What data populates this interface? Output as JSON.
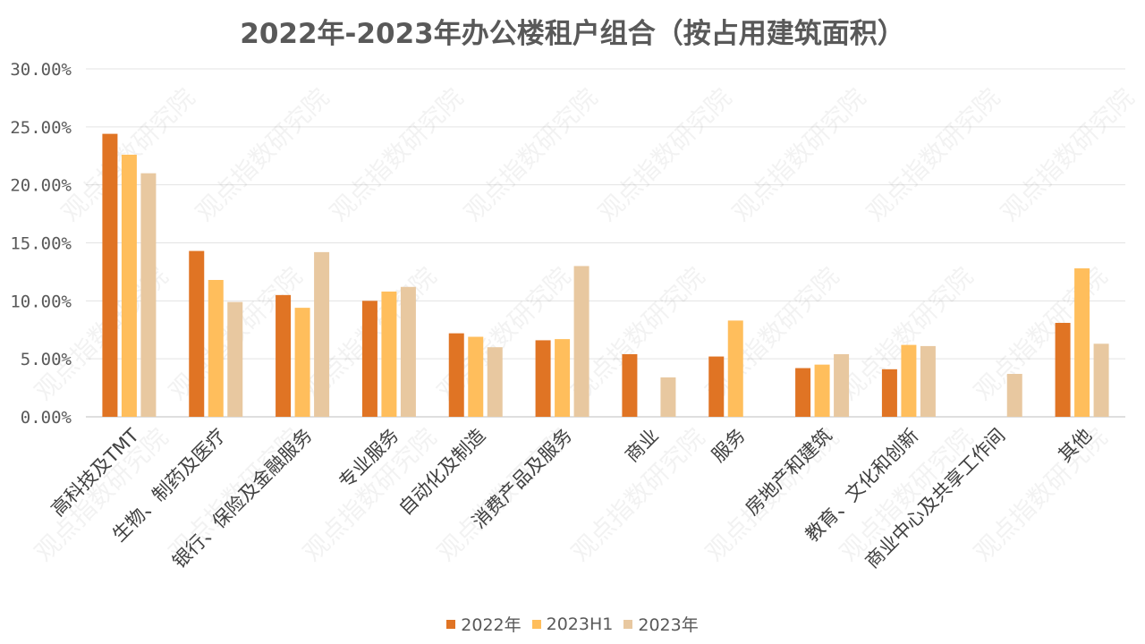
{
  "chart_data": {
    "type": "bar",
    "title": "2022年-2023年办公楼租户组合（按占用建筑面积）",
    "categories": [
      "高科技及TMT",
      "生物、制药及医疗",
      "银行、保险及金融服务",
      "专业服务",
      "自动化及制造",
      "消费产品及服务",
      "商业",
      "服务",
      "房地产和建筑",
      "教育、文化和创新",
      "商业中心及共享工作间",
      "其他"
    ],
    "series": [
      {
        "name": "2022年",
        "color": "#E07424",
        "values": [
          24.4,
          14.3,
          10.5,
          10.0,
          7.2,
          6.6,
          5.4,
          5.2,
          4.2,
          4.1,
          null,
          8.1
        ]
      },
      {
        "name": "2023H1",
        "color": "#FFBE5C",
        "values": [
          22.6,
          11.8,
          9.4,
          10.8,
          6.9,
          6.7,
          null,
          8.3,
          4.5,
          6.2,
          null,
          12.8
        ]
      },
      {
        "name": "2023年",
        "color": "#E8C8A0",
        "values": [
          21.0,
          9.9,
          14.2,
          11.2,
          6.0,
          13.0,
          3.4,
          null,
          5.4,
          6.1,
          3.7,
          6.3
        ]
      }
    ],
    "y_ticks": [
      "0.00%",
      "5.00%",
      "10.00%",
      "15.00%",
      "20.00%",
      "25.00%",
      "30.00%"
    ],
    "ylim": [
      0,
      30
    ],
    "grid": true,
    "legend_position": "bottom",
    "watermark": "观点指数研究院"
  }
}
